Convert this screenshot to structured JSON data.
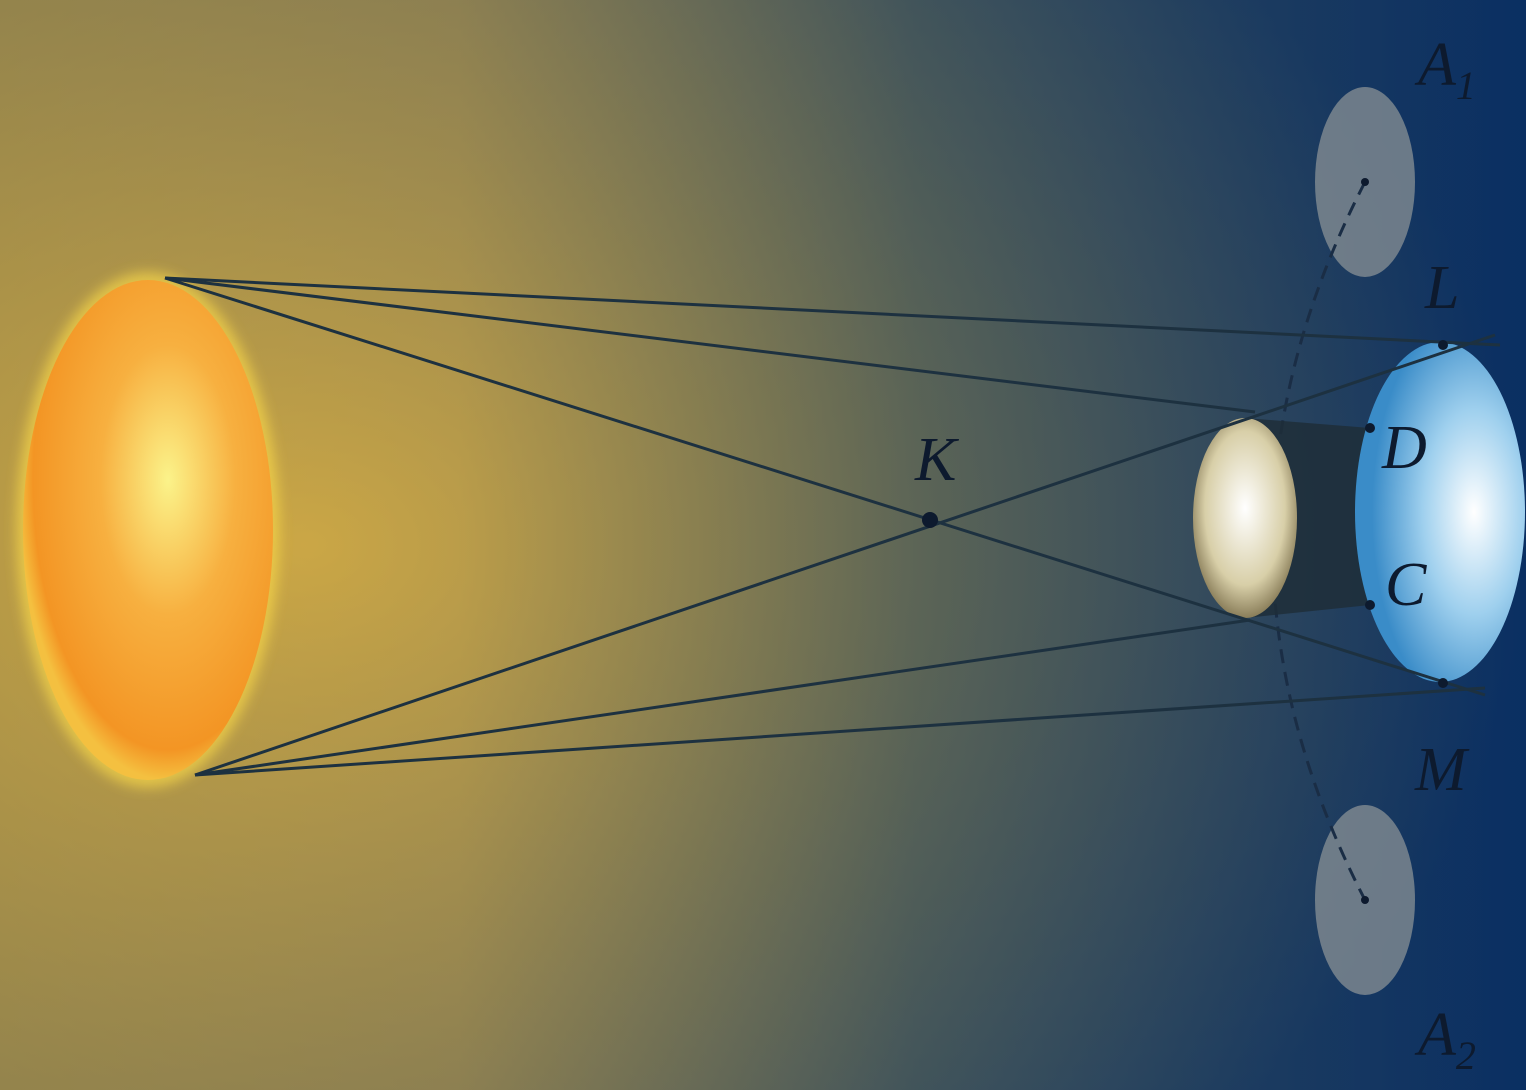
{
  "labels": {
    "a1": {
      "text": "A",
      "sub": "1"
    },
    "l": {
      "text": "L"
    },
    "k": {
      "text": "K"
    },
    "d": {
      "text": "D"
    },
    "c": {
      "text": "C"
    },
    "m": {
      "text": "M"
    },
    "a2": {
      "text": "A",
      "sub": "2"
    }
  }
}
